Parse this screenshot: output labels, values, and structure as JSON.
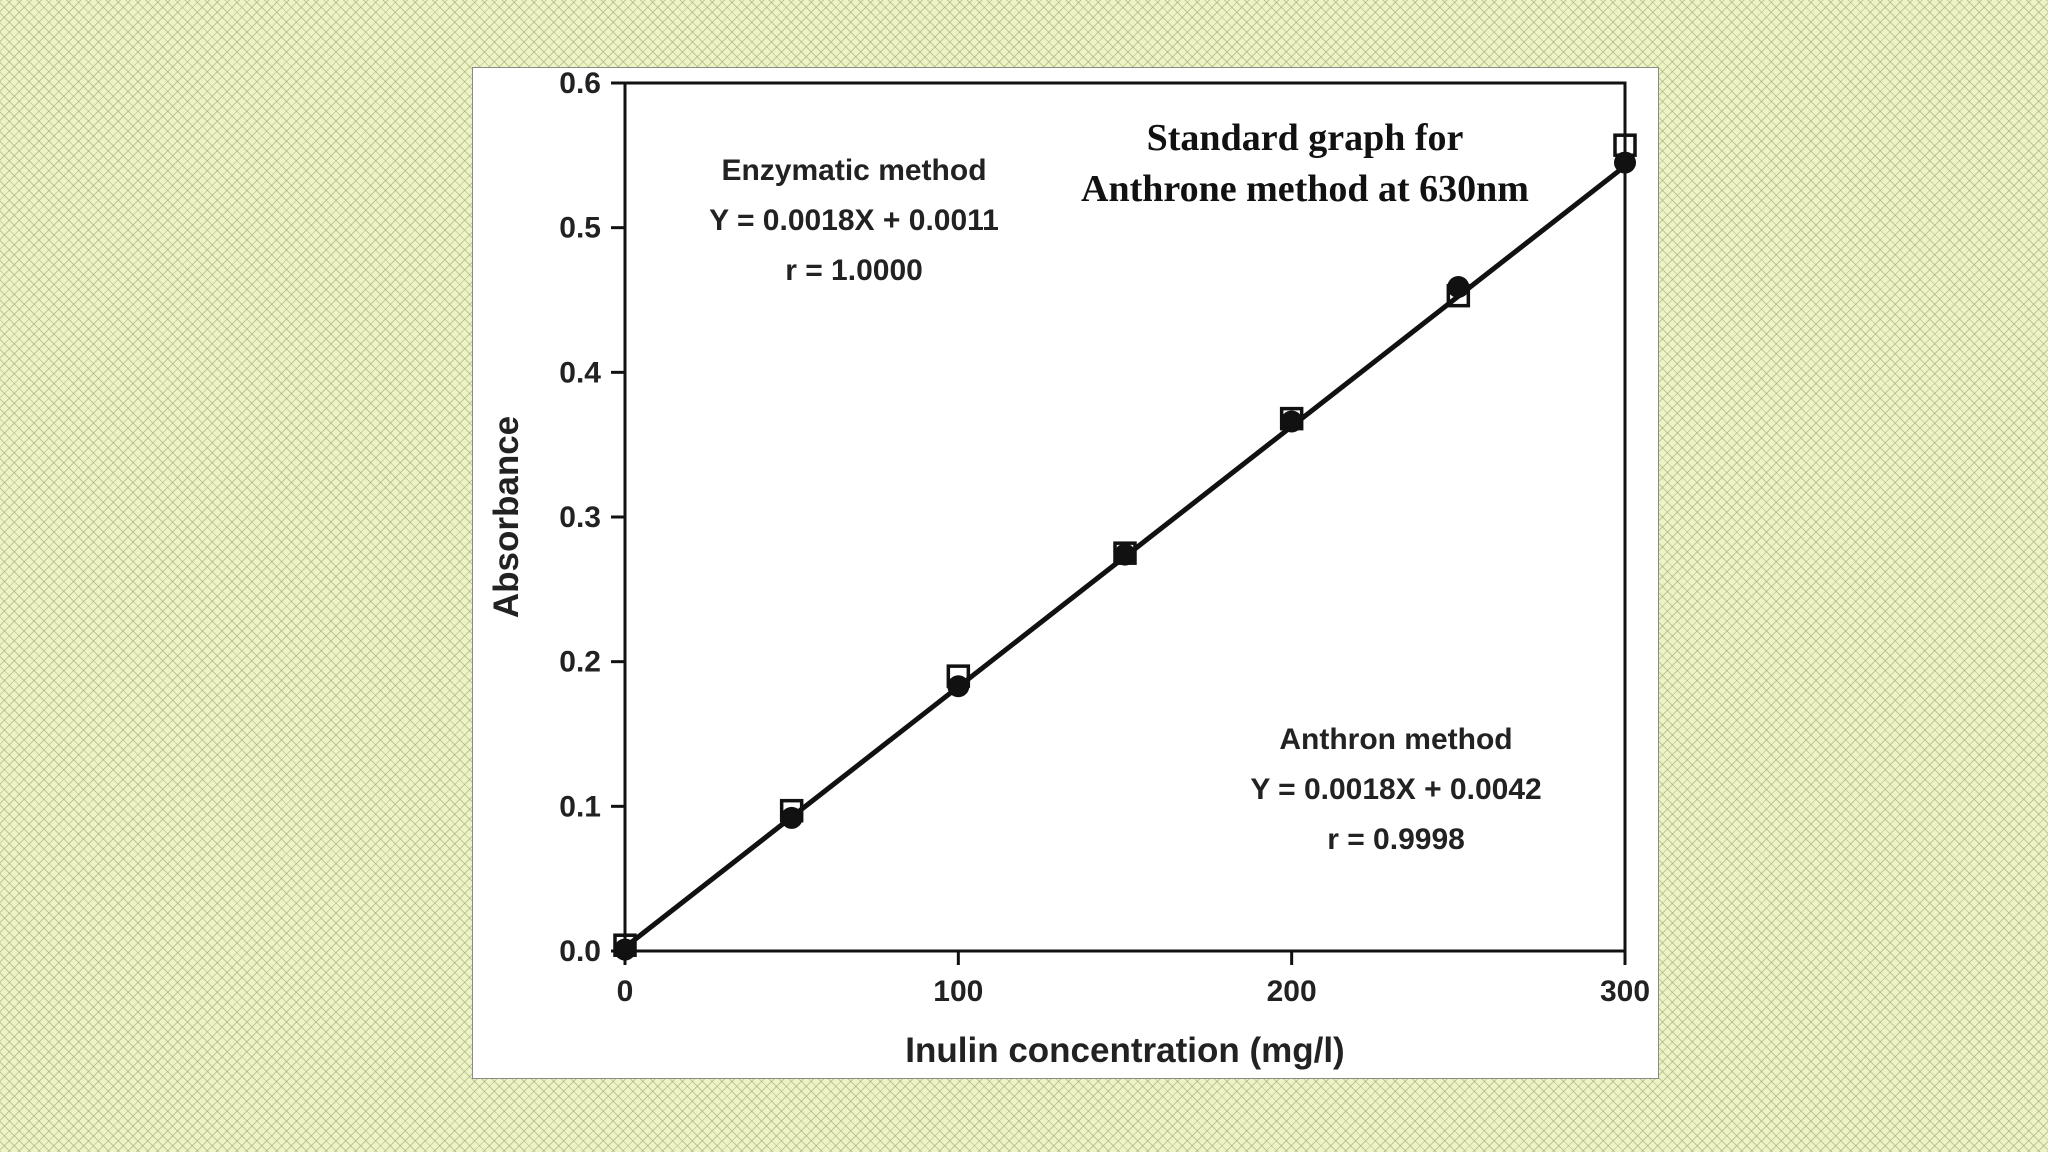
{
  "colors": {
    "background": "#eef2c4",
    "panel": "#ffffff",
    "ink": "#111111"
  },
  "chart_data": {
    "type": "scatter",
    "title": "Standard graph for Anthrone method at 630nm",
    "title_lines": [
      "Standard graph for",
      "Anthrone method at 630nm"
    ],
    "xlabel": "Inulin concentration (mg/l)",
    "ylabel": "Absorbance",
    "xlim": [
      0,
      300
    ],
    "ylim": [
      0,
      0.6
    ],
    "x_ticks": [
      0,
      100,
      200,
      300
    ],
    "x_tick_labels": [
      "0",
      "100",
      "200",
      "300"
    ],
    "y_ticks": [
      0,
      0.1,
      0.2,
      0.3,
      0.4,
      0.5,
      0.6
    ],
    "y_tick_labels": [
      "0.0",
      "0.1",
      "0.2",
      "0.3",
      "0.4",
      "0.5",
      "0.6"
    ],
    "grid": false,
    "series": [
      {
        "marker": "circle-filled",
        "x": [
          0,
          50,
          100,
          150,
          200,
          250,
          300
        ],
        "y": [
          0.001,
          0.092,
          0.183,
          0.274,
          0.366,
          0.459,
          0.545
        ]
      },
      {
        "marker": "square-open",
        "x": [
          0,
          50,
          100,
          150,
          200,
          250,
          300
        ],
        "y": [
          0.004,
          0.097,
          0.19,
          0.275,
          0.368,
          0.453,
          0.557
        ]
      }
    ],
    "fit_line": {
      "slope": 0.0018,
      "intercept": 0.0026,
      "x_range": [
        0,
        300
      ]
    },
    "annotations": [
      {
        "lines": [
          "Enzymatic method",
          "Y = 0.0018X + 0.0011",
          "r = 1.0000"
        ],
        "position": "top-left"
      },
      {
        "lines": [
          "Anthron method",
          "Y = 0.0018X + 0.0042",
          "r = 0.9998"
        ],
        "position": "bottom-right"
      }
    ]
  }
}
